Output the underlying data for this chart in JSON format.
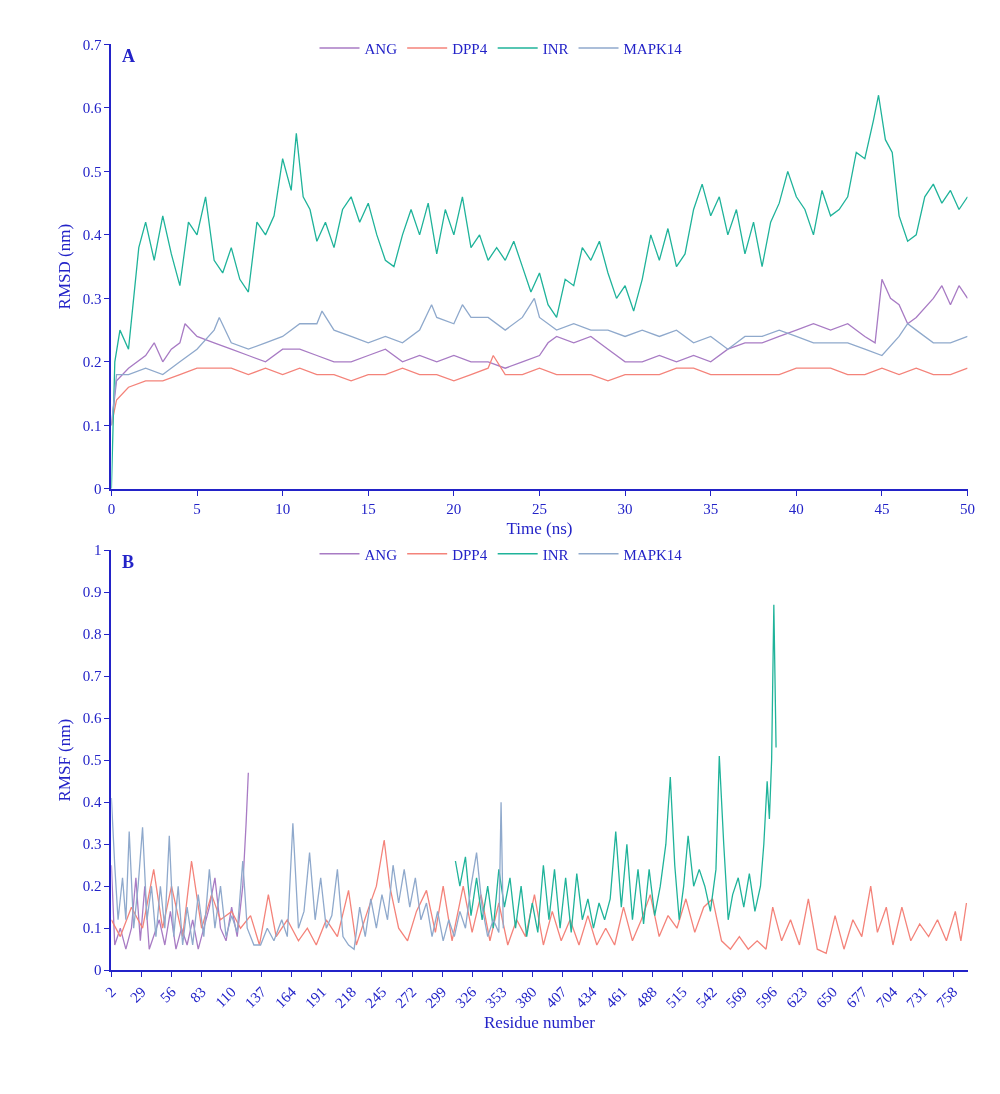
{
  "chart_data": [
    {
      "type": "line",
      "title": "A",
      "xlabel": "Time (ns)",
      "ylabel": "RMSD (nm)",
      "xlim": [
        0,
        50
      ],
      "ylim": [
        0,
        0.7
      ],
      "xticks": [
        0,
        5,
        10,
        15,
        20,
        25,
        30,
        35,
        40,
        45,
        50
      ],
      "yticks": [
        0,
        0.1,
        0.2,
        0.3,
        0.4,
        0.5,
        0.6,
        0.7
      ],
      "legend": "top",
      "series": [
        {
          "name": "ANG",
          "color": "#a87bc4",
          "x": [
            0,
            0.3,
            1,
            2,
            2.5,
            3,
            3.5,
            4,
            4.3,
            5,
            6,
            7,
            8,
            9,
            10,
            11,
            12,
            13,
            14,
            15,
            16,
            17,
            18,
            19,
            20,
            21,
            22,
            23,
            24,
            25,
            25.5,
            26,
            27,
            28,
            29,
            30,
            31,
            32,
            33,
            34,
            35,
            36,
            37,
            38,
            39,
            40,
            41,
            42,
            43,
            44,
            44.6,
            45,
            45.5,
            46,
            46.5,
            47,
            48,
            48.5,
            49,
            49.5,
            50
          ],
          "values": [
            0.1,
            0.17,
            0.19,
            0.21,
            0.23,
            0.2,
            0.22,
            0.23,
            0.26,
            0.24,
            0.23,
            0.22,
            0.21,
            0.2,
            0.22,
            0.22,
            0.21,
            0.2,
            0.2,
            0.21,
            0.22,
            0.2,
            0.21,
            0.2,
            0.21,
            0.2,
            0.2,
            0.19,
            0.2,
            0.21,
            0.23,
            0.24,
            0.23,
            0.24,
            0.22,
            0.2,
            0.2,
            0.21,
            0.2,
            0.21,
            0.2,
            0.22,
            0.23,
            0.23,
            0.24,
            0.25,
            0.26,
            0.25,
            0.26,
            0.24,
            0.23,
            0.33,
            0.3,
            0.29,
            0.26,
            0.27,
            0.3,
            0.32,
            0.29,
            0.32,
            0.3
          ]
        },
        {
          "name": "DPP4",
          "color": "#f4837a",
          "x": [
            0,
            0.3,
            1,
            2,
            3,
            4,
            5,
            6,
            7,
            8,
            9,
            10,
            11,
            12,
            13,
            14,
            15,
            16,
            17,
            18,
            19,
            20,
            21,
            22,
            22.3,
            23,
            24,
            25,
            26,
            27,
            28,
            29,
            30,
            31,
            32,
            33,
            34,
            35,
            36,
            37,
            38,
            39,
            40,
            41,
            42,
            43,
            44,
            45,
            46,
            47,
            48,
            49,
            50
          ],
          "values": [
            0.1,
            0.14,
            0.16,
            0.17,
            0.17,
            0.18,
            0.19,
            0.19,
            0.19,
            0.18,
            0.19,
            0.18,
            0.19,
            0.18,
            0.18,
            0.17,
            0.18,
            0.18,
            0.19,
            0.18,
            0.18,
            0.17,
            0.18,
            0.19,
            0.21,
            0.18,
            0.18,
            0.19,
            0.18,
            0.18,
            0.18,
            0.17,
            0.18,
            0.18,
            0.18,
            0.19,
            0.19,
            0.18,
            0.18,
            0.18,
            0.18,
            0.18,
            0.19,
            0.19,
            0.19,
            0.18,
            0.18,
            0.19,
            0.18,
            0.19,
            0.18,
            0.18,
            0.19
          ]
        },
        {
          "name": "INR",
          "color": "#1fb39a",
          "x": [
            0,
            0.2,
            0.5,
            1,
            1.3,
            1.6,
            2,
            2.5,
            3,
            3.5,
            4,
            4.5,
            5,
            5.5,
            6,
            6.5,
            7,
            7.5,
            8,
            8.5,
            9,
            9.5,
            10,
            10.5,
            10.8,
            11.2,
            11.6,
            12,
            12.5,
            13,
            13.5,
            14,
            14.5,
            15,
            15.5,
            16,
            16.5,
            17,
            17.5,
            18,
            18.5,
            19,
            19.5,
            20,
            20.5,
            21,
            21.5,
            22,
            22.5,
            23,
            23.5,
            24,
            24.5,
            25,
            25.5,
            26,
            26.5,
            27,
            27.5,
            28,
            28.5,
            29,
            29.5,
            30,
            30.5,
            31,
            31.5,
            32,
            32.5,
            33,
            33.5,
            34,
            34.5,
            35,
            35.5,
            36,
            36.5,
            37,
            37.5,
            38,
            38.5,
            39,
            39.5,
            40,
            40.5,
            41,
            41.5,
            42,
            42.5,
            43,
            43.5,
            44,
            44.5,
            44.8,
            45.2,
            45.6,
            46,
            46.5,
            47,
            47.5,
            48,
            48.5,
            49,
            49.5,
            50
          ],
          "values": [
            0,
            0.2,
            0.25,
            0.22,
            0.3,
            0.38,
            0.42,
            0.36,
            0.43,
            0.37,
            0.32,
            0.42,
            0.4,
            0.46,
            0.36,
            0.34,
            0.38,
            0.33,
            0.31,
            0.42,
            0.4,
            0.43,
            0.52,
            0.47,
            0.56,
            0.46,
            0.44,
            0.39,
            0.42,
            0.38,
            0.44,
            0.46,
            0.42,
            0.45,
            0.4,
            0.36,
            0.35,
            0.4,
            0.44,
            0.4,
            0.45,
            0.37,
            0.44,
            0.4,
            0.46,
            0.38,
            0.4,
            0.36,
            0.38,
            0.36,
            0.39,
            0.35,
            0.31,
            0.34,
            0.29,
            0.27,
            0.33,
            0.32,
            0.38,
            0.36,
            0.39,
            0.34,
            0.3,
            0.32,
            0.28,
            0.33,
            0.4,
            0.36,
            0.41,
            0.35,
            0.37,
            0.44,
            0.48,
            0.43,
            0.46,
            0.4,
            0.44,
            0.37,
            0.42,
            0.35,
            0.42,
            0.45,
            0.5,
            0.46,
            0.44,
            0.4,
            0.47,
            0.43,
            0.44,
            0.46,
            0.53,
            0.52,
            0.58,
            0.62,
            0.55,
            0.53,
            0.43,
            0.39,
            0.4,
            0.46,
            0.48,
            0.45,
            0.47,
            0.44,
            0.46
          ]
        },
        {
          "name": "MAPK14",
          "color": "#8fa9cc",
          "x": [
            0,
            0.3,
            1,
            2,
            3,
            4,
            5,
            6,
            6.3,
            7,
            8,
            9,
            10,
            11,
            12,
            12.3,
            13,
            14,
            15,
            16,
            17,
            18,
            18.7,
            19,
            20,
            20.5,
            21,
            22,
            23,
            24,
            24.7,
            25,
            26,
            27,
            28,
            29,
            30,
            31,
            32,
            33,
            34,
            35,
            36,
            37,
            38,
            39,
            40,
            41,
            42,
            43,
            44,
            45,
            46,
            46.5,
            47,
            48,
            49,
            50
          ],
          "values": [
            0.1,
            0.18,
            0.18,
            0.19,
            0.18,
            0.2,
            0.22,
            0.25,
            0.27,
            0.23,
            0.22,
            0.23,
            0.24,
            0.26,
            0.26,
            0.28,
            0.25,
            0.24,
            0.23,
            0.24,
            0.23,
            0.25,
            0.29,
            0.27,
            0.26,
            0.29,
            0.27,
            0.27,
            0.25,
            0.27,
            0.3,
            0.27,
            0.25,
            0.26,
            0.25,
            0.25,
            0.24,
            0.25,
            0.24,
            0.25,
            0.23,
            0.24,
            0.22,
            0.24,
            0.24,
            0.25,
            0.24,
            0.23,
            0.23,
            0.23,
            0.22,
            0.21,
            0.24,
            0.26,
            0.25,
            0.23,
            0.23,
            0.24
          ]
        }
      ]
    },
    {
      "type": "line",
      "title": "B",
      "xlabel": "Residue number",
      "ylabel": "RMSF (nm)",
      "xlim": [
        2,
        771
      ],
      "ylim": [
        0,
        1
      ],
      "xticks": [
        2,
        29,
        56,
        83,
        110,
        137,
        164,
        191,
        218,
        245,
        272,
        299,
        326,
        353,
        380,
        407,
        434,
        461,
        488,
        515,
        542,
        569,
        596,
        623,
        650,
        677,
        704,
        731,
        758
      ],
      "yticks": [
        0,
        0.1,
        0.2,
        0.3,
        0.4,
        0.5,
        0.6,
        0.7,
        0.8,
        0.9,
        1
      ],
      "legend": "top",
      "series": [
        {
          "name": "ANG",
          "color": "#a87bc4",
          "x": [
            2,
            5,
            10,
            15,
            20,
            24,
            28,
            32,
            36,
            45,
            50,
            55,
            60,
            65,
            70,
            75,
            80,
            85,
            90,
            95,
            100,
            105,
            110,
            115,
            120,
            123,
            125
          ],
          "values": [
            0.25,
            0.06,
            0.1,
            0.05,
            0.1,
            0.22,
            0.07,
            0.2,
            0.05,
            0.12,
            0.06,
            0.14,
            0.05,
            0.1,
            0.06,
            0.12,
            0.05,
            0.1,
            0.15,
            0.22,
            0.1,
            0.07,
            0.15,
            0.08,
            0.2,
            0.35,
            0.47
          ]
        },
        {
          "name": "DPP4",
          "color": "#f4837a",
          "x": [
            2,
            10,
            20,
            30,
            40,
            48,
            56,
            66,
            74,
            83,
            92,
            100,
            110,
            118,
            127,
            135,
            143,
            150,
            160,
            170,
            178,
            186,
            195,
            205,
            215,
            222,
            232,
            240,
            247,
            252,
            260,
            268,
            276,
            285,
            293,
            300,
            308,
            318,
            326,
            334,
            342,
            350,
            358,
            366,
            374,
            382,
            390,
            398,
            406,
            414,
            422,
            430,
            438,
            446,
            454,
            462,
            470,
            478,
            486,
            494,
            502,
            510,
            518,
            526,
            534,
            542,
            550,
            558,
            566,
            574,
            582,
            590,
            596,
            604,
            612,
            620,
            628,
            636,
            644,
            652,
            660,
            668,
            676,
            684,
            690,
            698,
            704,
            712,
            720,
            728,
            736,
            744,
            752,
            760,
            765,
            770
          ],
          "values": [
            0.12,
            0.08,
            0.15,
            0.1,
            0.24,
            0.1,
            0.2,
            0.08,
            0.26,
            0.1,
            0.18,
            0.12,
            0.14,
            0.1,
            0.13,
            0.06,
            0.18,
            0.08,
            0.12,
            0.07,
            0.1,
            0.06,
            0.12,
            0.08,
            0.19,
            0.06,
            0.14,
            0.2,
            0.31,
            0.2,
            0.1,
            0.07,
            0.14,
            0.19,
            0.09,
            0.2,
            0.07,
            0.2,
            0.09,
            0.18,
            0.07,
            0.16,
            0.06,
            0.12,
            0.08,
            0.18,
            0.06,
            0.14,
            0.07,
            0.12,
            0.06,
            0.13,
            0.06,
            0.1,
            0.06,
            0.15,
            0.07,
            0.12,
            0.18,
            0.08,
            0.13,
            0.1,
            0.17,
            0.09,
            0.15,
            0.17,
            0.07,
            0.05,
            0.08,
            0.05,
            0.07,
            0.05,
            0.15,
            0.07,
            0.12,
            0.06,
            0.17,
            0.05,
            0.04,
            0.13,
            0.05,
            0.12,
            0.08,
            0.2,
            0.09,
            0.15,
            0.06,
            0.15,
            0.07,
            0.11,
            0.08,
            0.12,
            0.07,
            0.14,
            0.07,
            0.16
          ]
        },
        {
          "name": "INR",
          "color": "#1fb39a",
          "x": [
            311,
            315,
            320,
            325,
            330,
            335,
            340,
            345,
            350,
            355,
            360,
            365,
            370,
            375,
            380,
            385,
            390,
            395,
            400,
            405,
            410,
            415,
            420,
            425,
            430,
            435,
            440,
            445,
            450,
            455,
            460,
            465,
            470,
            475,
            480,
            485,
            490,
            495,
            500,
            504,
            508,
            512,
            516,
            520,
            525,
            530,
            535,
            540,
            545,
            548,
            552,
            556,
            560,
            565,
            570,
            575,
            580,
            585,
            588,
            591,
            593,
            595,
            597,
            599
          ],
          "values": [
            0.26,
            0.2,
            0.27,
            0.13,
            0.22,
            0.12,
            0.2,
            0.1,
            0.24,
            0.15,
            0.22,
            0.1,
            0.2,
            0.08,
            0.16,
            0.09,
            0.25,
            0.12,
            0.24,
            0.1,
            0.22,
            0.09,
            0.23,
            0.12,
            0.17,
            0.1,
            0.16,
            0.12,
            0.17,
            0.33,
            0.15,
            0.3,
            0.12,
            0.24,
            0.11,
            0.24,
            0.13,
            0.2,
            0.3,
            0.46,
            0.25,
            0.12,
            0.2,
            0.32,
            0.2,
            0.24,
            0.2,
            0.14,
            0.24,
            0.51,
            0.3,
            0.12,
            0.18,
            0.22,
            0.15,
            0.23,
            0.14,
            0.2,
            0.3,
            0.45,
            0.36,
            0.5,
            0.87,
            0.53
          ]
        },
        {
          "name": "MAPK14",
          "color": "#8fa9cc",
          "x": [
            2,
            5,
            8,
            12,
            15,
            18,
            22,
            26,
            30,
            34,
            38,
            42,
            46,
            50,
            54,
            58,
            62,
            66,
            70,
            75,
            80,
            85,
            90,
            95,
            100,
            105,
            110,
            115,
            120,
            124,
            130,
            136,
            142,
            148,
            155,
            160,
            165,
            170,
            175,
            180,
            185,
            190,
            195,
            200,
            205,
            210,
            215,
            220,
            225,
            230,
            235,
            240,
            245,
            250,
            255,
            260,
            265,
            270,
            275,
            280,
            285,
            290,
            295,
            300,
            305,
            310,
            315,
            320,
            325,
            330,
            335,
            340,
            345,
            350,
            352,
            354
          ],
          "values": [
            0.41,
            0.25,
            0.12,
            0.22,
            0.12,
            0.33,
            0.1,
            0.2,
            0.34,
            0.12,
            0.2,
            0.08,
            0.2,
            0.1,
            0.32,
            0.08,
            0.2,
            0.06,
            0.15,
            0.06,
            0.18,
            0.08,
            0.24,
            0.1,
            0.2,
            0.08,
            0.13,
            0.09,
            0.26,
            0.1,
            0.06,
            0.06,
            0.1,
            0.07,
            0.12,
            0.08,
            0.35,
            0.1,
            0.14,
            0.28,
            0.12,
            0.22,
            0.1,
            0.13,
            0.24,
            0.08,
            0.06,
            0.05,
            0.15,
            0.08,
            0.17,
            0.1,
            0.18,
            0.12,
            0.25,
            0.16,
            0.24,
            0.15,
            0.22,
            0.12,
            0.16,
            0.08,
            0.14,
            0.07,
            0.12,
            0.08,
            0.14,
            0.1,
            0.2,
            0.28,
            0.15,
            0.08,
            0.12,
            0.09,
            0.4,
            0.1
          ]
        }
      ]
    }
  ]
}
